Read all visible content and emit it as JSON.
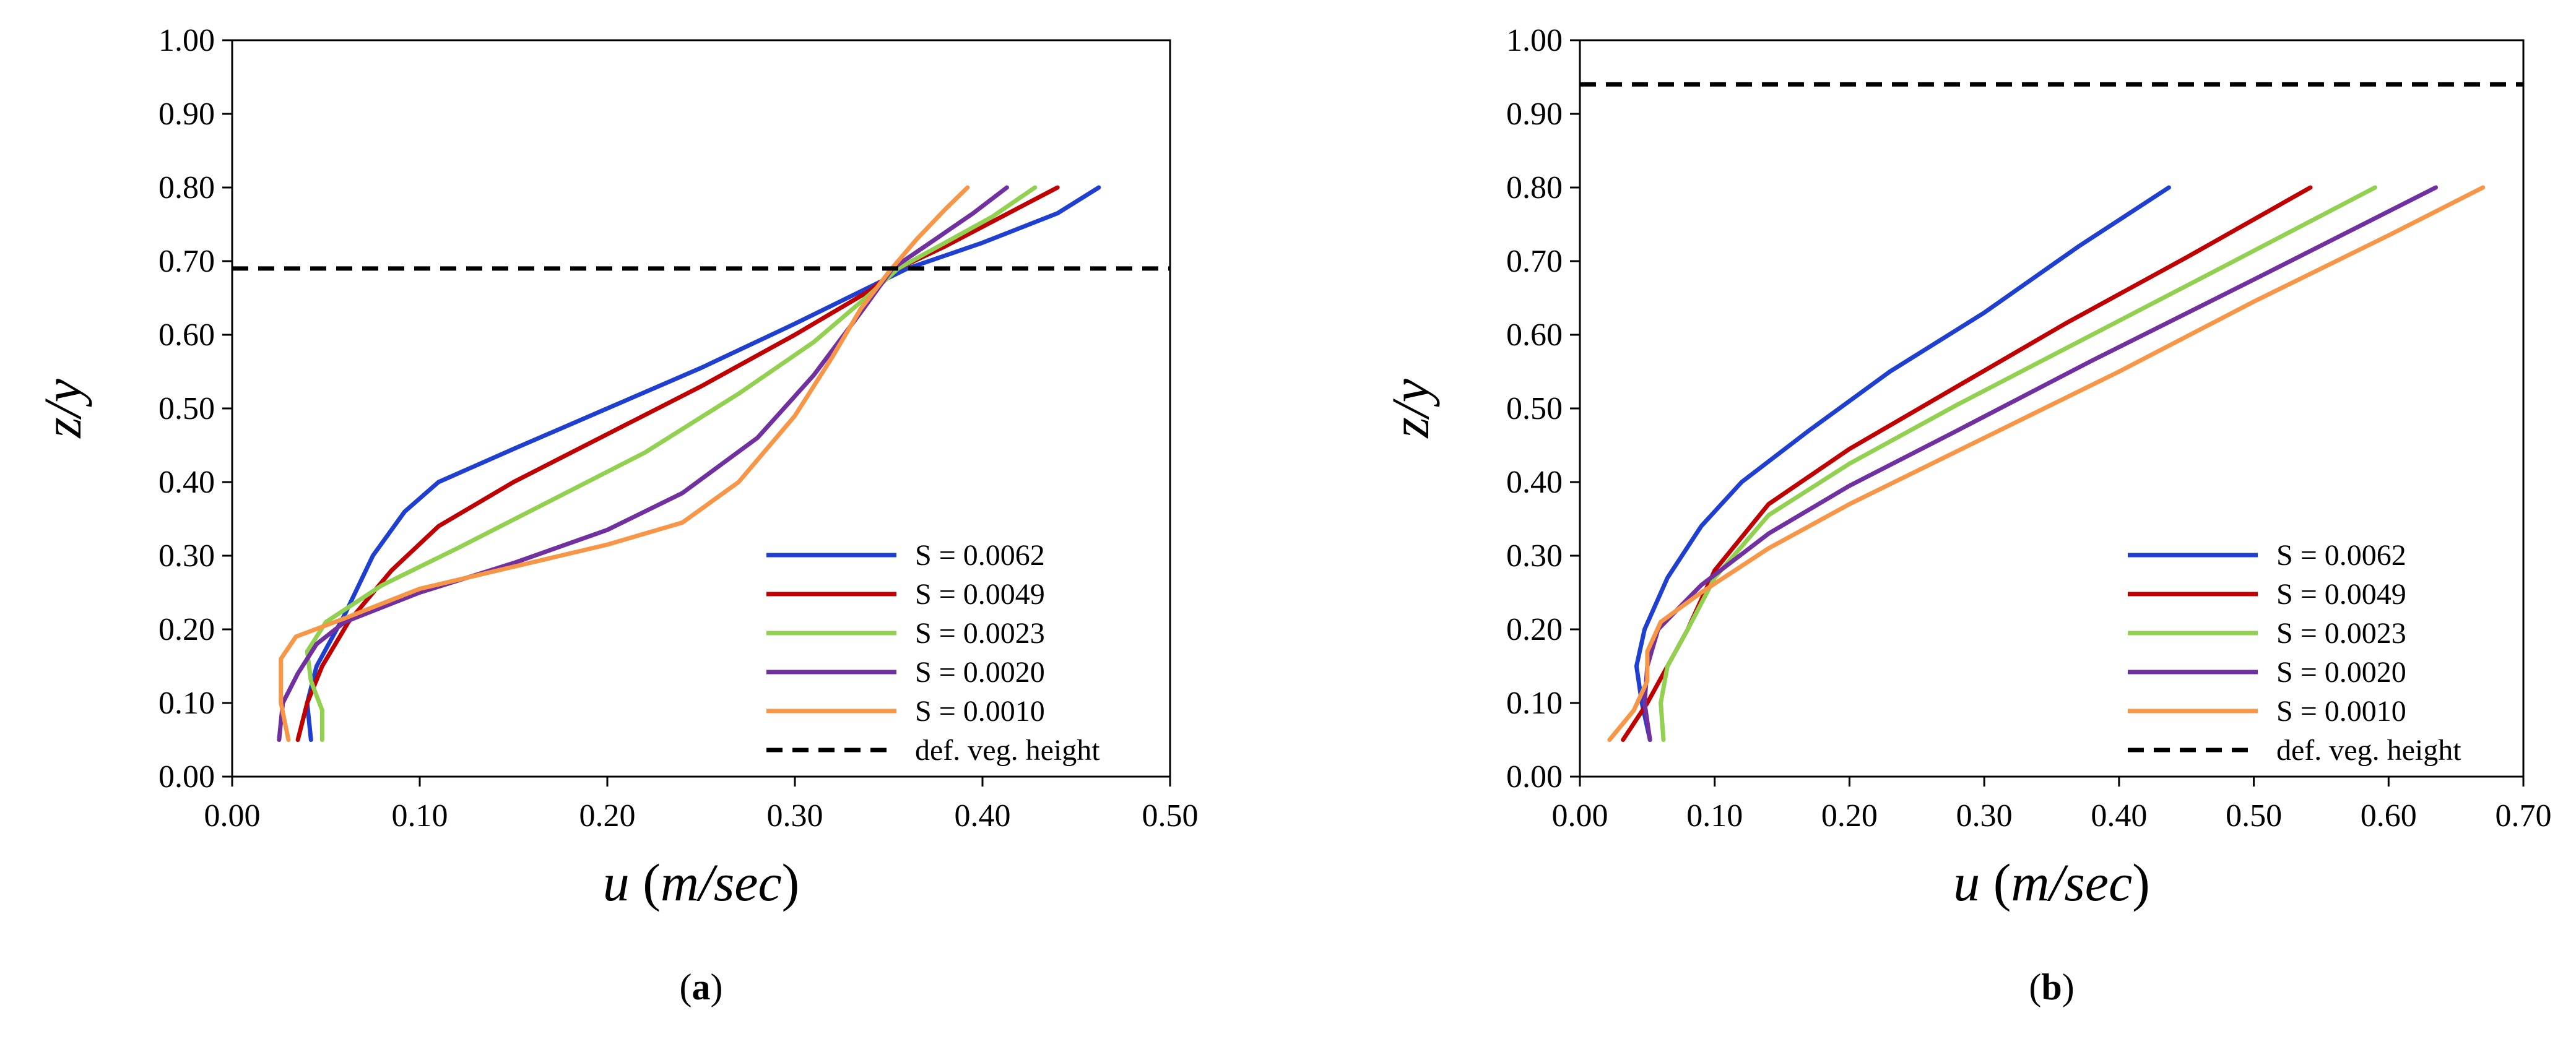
{
  "chart_data": [
    {
      "type": "line",
      "panel_label": "(a)",
      "panel_letter": "a",
      "xlabel_var": "u",
      "xlabel_unit": "m/sec",
      "ylabel": "z/y",
      "xlim": [
        0,
        0.5
      ],
      "ylim": [
        0,
        1
      ],
      "xticks": [
        "0.00",
        "0.10",
        "0.20",
        "0.30",
        "0.40",
        "0.50"
      ],
      "yticks": [
        "0.00",
        "0.10",
        "0.20",
        "0.30",
        "0.40",
        "0.50",
        "0.60",
        "0.70",
        "0.80",
        "0.90",
        "1.00"
      ],
      "legend_position": "bottom-right",
      "series": [
        {
          "name": "S = 0.0062",
          "color": "#1f3fd1",
          "points": [
            [
              0.042,
              0.05
            ],
            [
              0.04,
              0.1
            ],
            [
              0.045,
              0.15
            ],
            [
              0.06,
              0.22
            ],
            [
              0.075,
              0.3
            ],
            [
              0.092,
              0.36
            ],
            [
              0.11,
              0.4
            ],
            [
              0.15,
              0.445
            ],
            [
              0.2,
              0.5
            ],
            [
              0.25,
              0.555
            ],
            [
              0.3,
              0.615
            ],
            [
              0.34,
              0.665
            ],
            [
              0.36,
              0.69
            ],
            [
              0.4,
              0.725
            ],
            [
              0.44,
              0.765
            ],
            [
              0.462,
              0.8
            ]
          ]
        },
        {
          "name": "S = 0.0049",
          "color": "#c00000",
          "points": [
            [
              0.035,
              0.05
            ],
            [
              0.04,
              0.1
            ],
            [
              0.048,
              0.15
            ],
            [
              0.062,
              0.21
            ],
            [
              0.085,
              0.28
            ],
            [
              0.11,
              0.34
            ],
            [
              0.15,
              0.4
            ],
            [
              0.2,
              0.465
            ],
            [
              0.25,
              0.53
            ],
            [
              0.3,
              0.6
            ],
            [
              0.34,
              0.66
            ],
            [
              0.355,
              0.69
            ],
            [
              0.38,
              0.72
            ],
            [
              0.41,
              0.76
            ],
            [
              0.44,
              0.8
            ]
          ]
        },
        {
          "name": "S = 0.0023",
          "color": "#92d050",
          "points": [
            [
              0.048,
              0.05
            ],
            [
              0.048,
              0.09
            ],
            [
              0.042,
              0.13
            ],
            [
              0.04,
              0.17
            ],
            [
              0.05,
              0.21
            ],
            [
              0.08,
              0.26
            ],
            [
              0.12,
              0.31
            ],
            [
              0.17,
              0.375
            ],
            [
              0.22,
              0.44
            ],
            [
              0.27,
              0.52
            ],
            [
              0.31,
              0.59
            ],
            [
              0.34,
              0.655
            ],
            [
              0.355,
              0.69
            ],
            [
              0.38,
              0.725
            ],
            [
              0.405,
              0.76
            ],
            [
              0.428,
              0.8
            ]
          ]
        },
        {
          "name": "S = 0.0020",
          "color": "#7030a0",
          "points": [
            [
              0.025,
              0.05
            ],
            [
              0.027,
              0.1
            ],
            [
              0.035,
              0.14
            ],
            [
              0.045,
              0.18
            ],
            [
              0.06,
              0.21
            ],
            [
              0.1,
              0.25
            ],
            [
              0.15,
              0.29
            ],
            [
              0.2,
              0.335
            ],
            [
              0.24,
              0.385
            ],
            [
              0.28,
              0.46
            ],
            [
              0.31,
              0.545
            ],
            [
              0.335,
              0.63
            ],
            [
              0.352,
              0.69
            ],
            [
              0.375,
              0.73
            ],
            [
              0.395,
              0.765
            ],
            [
              0.413,
              0.8
            ]
          ]
        },
        {
          "name": "S = 0.0010",
          "color": "#f79646",
          "points": [
            [
              0.03,
              0.05
            ],
            [
              0.026,
              0.1
            ],
            [
              0.026,
              0.16
            ],
            [
              0.034,
              0.19
            ],
            [
              0.06,
              0.215
            ],
            [
              0.1,
              0.255
            ],
            [
              0.15,
              0.285
            ],
            [
              0.2,
              0.315
            ],
            [
              0.24,
              0.345
            ],
            [
              0.27,
              0.4
            ],
            [
              0.3,
              0.49
            ],
            [
              0.32,
              0.57
            ],
            [
              0.335,
              0.635
            ],
            [
              0.35,
              0.685
            ],
            [
              0.365,
              0.73
            ],
            [
              0.38,
              0.77
            ],
            [
              0.392,
              0.8
            ]
          ]
        }
      ],
      "reference_lines": [
        {
          "name": "def. veg. height",
          "y": 0.69,
          "style": "dashed",
          "color": "#000000"
        }
      ]
    },
    {
      "type": "line",
      "panel_label": "(b)",
      "panel_letter": "b",
      "xlabel_var": "u",
      "xlabel_unit": "m/sec",
      "ylabel": "z/y",
      "xlim": [
        0,
        0.7
      ],
      "ylim": [
        0,
        1
      ],
      "xticks": [
        "0.00",
        "0.10",
        "0.20",
        "0.30",
        "0.40",
        "0.50",
        "0.60",
        "0.70"
      ],
      "yticks": [
        "0.00",
        "0.10",
        "0.20",
        "0.30",
        "0.40",
        "0.50",
        "0.60",
        "0.70",
        "0.80",
        "0.90",
        "1.00"
      ],
      "legend_position": "bottom-right",
      "series": [
        {
          "name": "S = 0.0062",
          "color": "#1f3fd1",
          "points": [
            [
              0.052,
              0.05
            ],
            [
              0.046,
              0.1
            ],
            [
              0.042,
              0.15
            ],
            [
              0.048,
              0.2
            ],
            [
              0.065,
              0.27
            ],
            [
              0.09,
              0.34
            ],
            [
              0.12,
              0.4
            ],
            [
              0.17,
              0.47
            ],
            [
              0.23,
              0.55
            ],
            [
              0.3,
              0.63
            ],
            [
              0.37,
              0.72
            ],
            [
              0.437,
              0.8
            ]
          ]
        },
        {
          "name": "S = 0.0049",
          "color": "#c00000",
          "points": [
            [
              0.032,
              0.05
            ],
            [
              0.05,
              0.1
            ],
            [
              0.065,
              0.15
            ],
            [
              0.08,
              0.2
            ],
            [
              0.1,
              0.28
            ],
            [
              0.14,
              0.37
            ],
            [
              0.2,
              0.445
            ],
            [
              0.28,
              0.53
            ],
            [
              0.36,
              0.615
            ],
            [
              0.45,
              0.705
            ],
            [
              0.542,
              0.8
            ]
          ]
        },
        {
          "name": "S = 0.0023",
          "color": "#92d050",
          "points": [
            [
              0.062,
              0.05
            ],
            [
              0.06,
              0.1
            ],
            [
              0.065,
              0.15
            ],
            [
              0.08,
              0.2
            ],
            [
              0.1,
              0.27
            ],
            [
              0.14,
              0.355
            ],
            [
              0.2,
              0.425
            ],
            [
              0.28,
              0.505
            ],
            [
              0.38,
              0.6
            ],
            [
              0.48,
              0.695
            ],
            [
              0.59,
              0.8
            ]
          ]
        },
        {
          "name": "S = 0.0020",
          "color": "#7030a0",
          "points": [
            [
              0.052,
              0.05
            ],
            [
              0.048,
              0.1
            ],
            [
              0.05,
              0.15
            ],
            [
              0.058,
              0.2
            ],
            [
              0.09,
              0.26
            ],
            [
              0.14,
              0.33
            ],
            [
              0.2,
              0.395
            ],
            [
              0.28,
              0.47
            ],
            [
              0.38,
              0.565
            ],
            [
              0.5,
              0.675
            ],
            [
              0.635,
              0.8
            ]
          ]
        },
        {
          "name": "S = 0.0010",
          "color": "#f79646",
          "points": [
            [
              0.022,
              0.05
            ],
            [
              0.04,
              0.09
            ],
            [
              0.05,
              0.13
            ],
            [
              0.05,
              0.17
            ],
            [
              0.06,
              0.21
            ],
            [
              0.09,
              0.25
            ],
            [
              0.14,
              0.31
            ],
            [
              0.2,
              0.37
            ],
            [
              0.3,
              0.46
            ],
            [
              0.4,
              0.55
            ],
            [
              0.5,
              0.645
            ],
            [
              0.6,
              0.735
            ],
            [
              0.67,
              0.8
            ]
          ]
        }
      ],
      "reference_lines": [
        {
          "name": "def. veg. height",
          "y": 0.94,
          "style": "dashed",
          "color": "#000000"
        }
      ]
    }
  ]
}
